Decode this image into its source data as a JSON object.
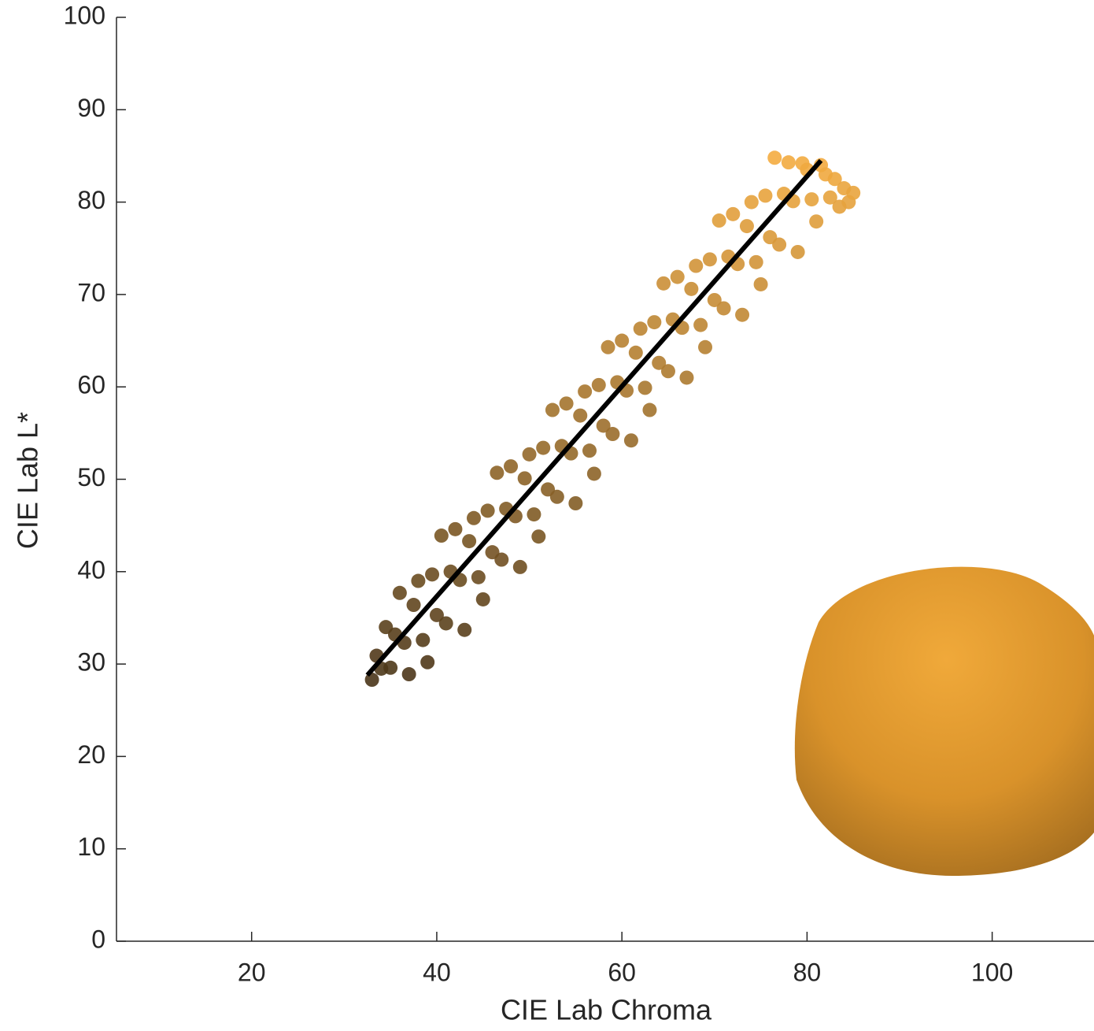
{
  "chart_data": {
    "type": "scatter",
    "x_label": "CIE Lab Chroma",
    "y_label": "CIE Lab L*",
    "xlim": [
      5.4,
      111
    ],
    "ylim": [
      0,
      100
    ],
    "xticks": [
      20,
      40,
      60,
      80,
      100
    ],
    "yticks": [
      0,
      10,
      20,
      30,
      40,
      50,
      60,
      70,
      80,
      90,
      100
    ],
    "grid": false,
    "series": [
      {
        "color_scale": [
          "#4a3519",
          "#f4ac40"
        ],
        "x": [
          33,
          33.5,
          34,
          34.5,
          35,
          35.5,
          36,
          36.5,
          37,
          37.5,
          38,
          38.5,
          39,
          39.5,
          40,
          40.5,
          41,
          41.5,
          42,
          42.5,
          43,
          43.5,
          44,
          44.5,
          45,
          45.5,
          46,
          46.5,
          47,
          47.5,
          48,
          48.5,
          49,
          49.5,
          50,
          50.5,
          51,
          51.5,
          52,
          52.5,
          53,
          53.5,
          54,
          54.5,
          55,
          55.5,
          56,
          56.5,
          57,
          57.5,
          58,
          58.5,
          59,
          59.5,
          60,
          60.5,
          61,
          61.5,
          62,
          62.5,
          63,
          63.5,
          64,
          64.5,
          65,
          65.5,
          66,
          66.5,
          67,
          67.5,
          68,
          68.5,
          69,
          69.5,
          70,
          70.5,
          71,
          71.5,
          72,
          72.5,
          73,
          73.5,
          74,
          74.5,
          75,
          75.5,
          76,
          76.5,
          77,
          77.5,
          78,
          78.5,
          79,
          79.5,
          80,
          80.5,
          81,
          81.5,
          82,
          82.5,
          83,
          83.5,
          84,
          84.5,
          85
        ],
        "values": [
          28.3,
          30.9,
          29.5,
          34.0,
          29.6,
          33.2,
          37.7,
          32.3,
          28.9,
          36.4,
          39.0,
          32.6,
          30.2,
          39.7,
          35.3,
          43.9,
          34.4,
          40.0,
          44.6,
          39.1,
          33.7,
          43.3,
          45.8,
          39.4,
          37.0,
          46.6,
          42.1,
          50.7,
          41.3,
          46.8,
          51.4,
          46.0,
          40.5,
          50.1,
          52.7,
          46.2,
          43.8,
          53.4,
          48.9,
          57.5,
          48.1,
          53.6,
          58.2,
          52.8,
          47.4,
          56.9,
          59.5,
          53.1,
          50.6,
          60.2,
          55.8,
          64.3,
          54.9,
          60.5,
          65.0,
          59.6,
          54.2,
          63.7,
          66.3,
          59.9,
          57.5,
          67.0,
          62.6,
          71.2,
          61.7,
          67.3,
          71.9,
          66.4,
          61.0,
          70.6,
          73.1,
          66.7,
          64.3,
          73.8,
          69.4,
          78.0,
          68.5,
          74.1,
          78.7,
          73.3,
          67.8,
          77.4,
          80.0,
          73.5,
          71.1,
          80.7,
          76.2,
          84.8,
          75.4,
          80.9,
          84.3,
          80.1,
          74.6,
          84.2,
          83.5,
          80.3,
          77.9,
          84.0,
          83.0,
          80.5,
          82.5,
          79.5,
          81.5,
          80.0,
          81.0
        ]
      }
    ],
    "fit_line": {
      "color": "#000000",
      "x": [
        32.5,
        81.5
      ],
      "values": [
        28.8,
        84.5
      ]
    }
  }
}
